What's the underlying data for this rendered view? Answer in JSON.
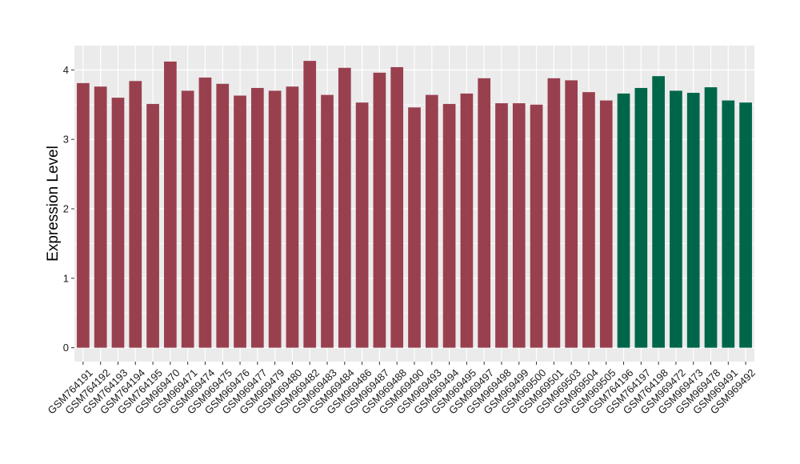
{
  "chart_data": {
    "type": "bar",
    "title": "",
    "xlabel": "",
    "ylabel": "Expression Level",
    "ylim": [
      -0.2,
      4.35
    ],
    "yticks": [
      0,
      1,
      2,
      3,
      4
    ],
    "grid": true,
    "legend": "none",
    "colors": {
      "group1": "#99404f",
      "group2": "#00664a",
      "panel": "#ebebeb",
      "grid": "#ffffff"
    },
    "categories": [
      "GSM764191",
      "GSM764192",
      "GSM764193",
      "GSM764194",
      "GSM764195",
      "GSM969470",
      "GSM969471",
      "GSM969474",
      "GSM969475",
      "GSM969476",
      "GSM969477",
      "GSM969479",
      "GSM969480",
      "GSM969482",
      "GSM969483",
      "GSM969484",
      "GSM969486",
      "GSM969487",
      "GSM969488",
      "GSM969490",
      "GSM969493",
      "GSM969494",
      "GSM969495",
      "GSM969497",
      "GSM969498",
      "GSM969499",
      "GSM969500",
      "GSM969501",
      "GSM969503",
      "GSM969504",
      "GSM969505",
      "GSM764196",
      "GSM764197",
      "GSM764198",
      "GSM969472",
      "GSM969473",
      "GSM969478",
      "GSM969491",
      "GSM969492"
    ],
    "values": [
      3.81,
      3.76,
      3.6,
      3.84,
      3.51,
      4.12,
      3.7,
      3.89,
      3.8,
      3.63,
      3.74,
      3.7,
      3.76,
      4.13,
      3.64,
      4.03,
      3.53,
      3.96,
      4.04,
      3.46,
      3.64,
      3.51,
      3.66,
      3.88,
      3.52,
      3.52,
      3.5,
      3.88,
      3.85,
      3.68,
      3.56,
      3.66,
      3.74,
      3.91,
      3.7,
      3.67,
      3.75,
      3.56,
      3.53
    ],
    "groups": [
      "group1",
      "group1",
      "group1",
      "group1",
      "group1",
      "group1",
      "group1",
      "group1",
      "group1",
      "group1",
      "group1",
      "group1",
      "group1",
      "group1",
      "group1",
      "group1",
      "group1",
      "group1",
      "group1",
      "group1",
      "group1",
      "group1",
      "group1",
      "group1",
      "group1",
      "group1",
      "group1",
      "group1",
      "group1",
      "group1",
      "group1",
      "group2",
      "group2",
      "group2",
      "group2",
      "group2",
      "group2",
      "group2",
      "group2"
    ]
  }
}
